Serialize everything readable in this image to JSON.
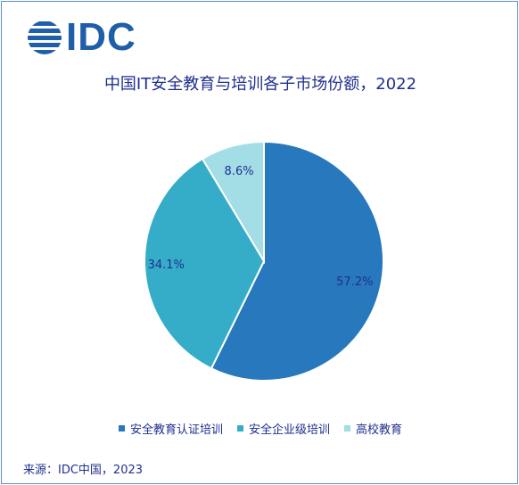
{
  "logo": {
    "text": "IDC",
    "icon": "idc-globe-icon",
    "color": "#1f5ea8"
  },
  "chart_data": {
    "type": "pie",
    "title": "中国IT安全教育与培训各子市场份额，2022",
    "categories": [
      "安全教育认证培训",
      "安全企业级培训",
      "高校教育"
    ],
    "values": [
      57.2,
      34.1,
      8.6
    ],
    "labels": [
      "57.2%",
      "34.1%",
      "8.6%"
    ],
    "colors": [
      "#2778bd",
      "#35adc8",
      "#a3dde6"
    ],
    "legend_position": "bottom"
  },
  "source": "来源：IDC中国，2023"
}
